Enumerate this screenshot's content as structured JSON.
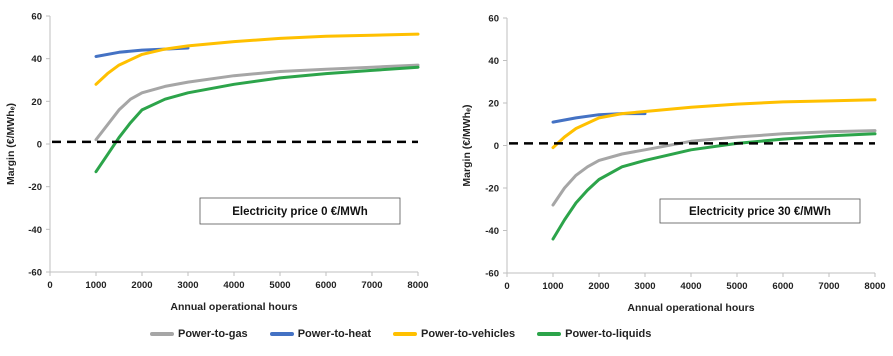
{
  "chart_data": [
    {
      "type": "line",
      "annotation": "Electricity price 0 €/MWh",
      "xlabel": "Annual operational hours",
      "ylabel": "Margin (€/MWhₑ)",
      "xlim": [
        0,
        8000
      ],
      "ylim": [
        -60,
        60
      ],
      "xticks": [
        0,
        1000,
        2000,
        3000,
        4000,
        5000,
        6000,
        7000,
        8000
      ],
      "yticks": [
        -60,
        -40,
        -20,
        0,
        20,
        40,
        60
      ],
      "reference_line_y": 1,
      "series": [
        {
          "name": "Power-to-gas",
          "x": [
            1000,
            1250,
            1500,
            1750,
            2000,
            2500,
            3000,
            4000,
            5000,
            6000,
            7000,
            8000
          ],
          "y": [
            2,
            9,
            16,
            21,
            24,
            27,
            29,
            32,
            34,
            35,
            36,
            37
          ]
        },
        {
          "name": "Power-to-heat",
          "x": [
            1000,
            1500,
            2000,
            2500,
            3000
          ],
          "y": [
            41,
            43,
            44,
            44.5,
            45
          ]
        },
        {
          "name": "Power-to-vehicles",
          "x": [
            1000,
            1250,
            1500,
            2000,
            2500,
            3000,
            4000,
            5000,
            6000,
            7000,
            8000
          ],
          "y": [
            28,
            33,
            37,
            42,
            44.5,
            46,
            48,
            49.5,
            50.5,
            51,
            51.5
          ]
        },
        {
          "name": "Power-to-liquids",
          "x": [
            1000,
            1250,
            1500,
            1750,
            2000,
            2500,
            3000,
            4000,
            5000,
            6000,
            7000,
            8000
          ],
          "y": [
            -13,
            -5,
            3,
            10,
            16,
            21,
            24,
            28,
            31,
            33,
            34.5,
            36
          ]
        }
      ]
    },
    {
      "type": "line",
      "annotation": "Electricity price 30 €/MWh",
      "xlabel": "Annual operational hours",
      "ylabel": "Margin (€/MWhₑ)",
      "xlim": [
        0,
        8000
      ],
      "ylim": [
        -60,
        60
      ],
      "xticks": [
        0,
        1000,
        2000,
        3000,
        4000,
        5000,
        6000,
        7000,
        8000
      ],
      "yticks": [
        -60,
        -40,
        -20,
        0,
        20,
        40,
        60
      ],
      "reference_line_y": 1,
      "series": [
        {
          "name": "Power-to-gas",
          "x": [
            1000,
            1250,
            1500,
            1750,
            2000,
            2500,
            3000,
            4000,
            5000,
            6000,
            7000,
            8000
          ],
          "y": [
            -28,
            -20,
            -14,
            -10,
            -7,
            -4,
            -2,
            2,
            4,
            5.5,
            6.5,
            7
          ]
        },
        {
          "name": "Power-to-heat",
          "x": [
            1000,
            1500,
            2000,
            2500,
            3000
          ],
          "y": [
            11,
            13,
            14.5,
            15,
            15
          ]
        },
        {
          "name": "Power-to-vehicles",
          "x": [
            1000,
            1250,
            1500,
            2000,
            2500,
            3000,
            4000,
            5000,
            6000,
            7000,
            8000
          ],
          "y": [
            -1,
            4,
            8,
            13,
            15,
            16,
            18,
            19.5,
            20.5,
            21,
            21.5
          ]
        },
        {
          "name": "Power-to-liquids",
          "x": [
            1000,
            1250,
            1500,
            1750,
            2000,
            2500,
            3000,
            4000,
            5000,
            6000,
            7000,
            8000
          ],
          "y": [
            -44,
            -35,
            -27,
            -21,
            -16,
            -10,
            -7,
            -2,
            1,
            3,
            4.5,
            5.5
          ]
        }
      ]
    }
  ],
  "legend": [
    {
      "label": "Power-to-gas",
      "color": "#a6a6a6"
    },
    {
      "label": "Power-to-heat",
      "color": "#4472c4"
    },
    {
      "label": "Power-to-vehicles",
      "color": "#ffc000"
    },
    {
      "label": "Power-to-liquids",
      "color": "#2ca44a"
    }
  ],
  "colors": {
    "Power-to-gas": "#a6a6a6",
    "Power-to-heat": "#4472c4",
    "Power-to-vehicles": "#ffc000",
    "Power-to-liquids": "#2ca44a",
    "reference_line": "#000000"
  }
}
